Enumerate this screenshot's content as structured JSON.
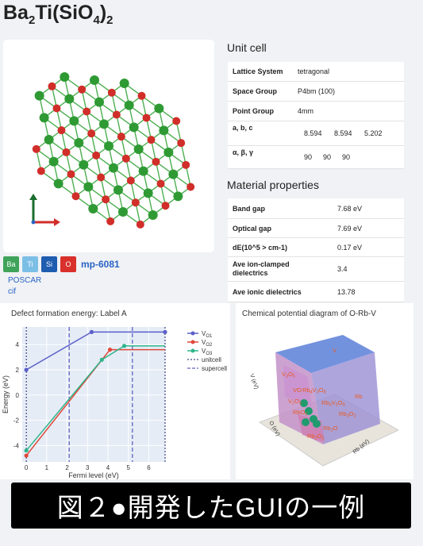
{
  "material": {
    "title_base": "Ba",
    "title_sub1": "2",
    "title_mid": "Ti(SiO",
    "title_sub2": "4",
    "title_end": ")",
    "title_sub3": "2",
    "mp_id": "mp-6081",
    "elements": [
      {
        "symbol": "Ba",
        "color": "#3fa35a"
      },
      {
        "symbol": "Ti",
        "color": "#7cbfe6"
      },
      {
        "symbol": "Si",
        "color": "#1f5db0"
      },
      {
        "symbol": "O",
        "color": "#d9302c"
      }
    ],
    "files": [
      "POSCAR",
      "cif"
    ]
  },
  "unit_cell": {
    "heading": "Unit cell",
    "rows": [
      {
        "key": "Lattice System",
        "values": [
          "tetragonal"
        ]
      },
      {
        "key": "Space Group",
        "values": [
          "P4bm (100)"
        ]
      },
      {
        "key": "Point Group",
        "values": [
          "4mm"
        ]
      },
      {
        "key": "a, b, c",
        "values": [
          "8.594",
          "8.594",
          "5.202"
        ]
      },
      {
        "key": "α, β, γ",
        "values": [
          "90",
          "90",
          "90"
        ]
      }
    ]
  },
  "material_properties": {
    "heading": "Material properties",
    "rows": [
      {
        "key": "Band gap",
        "value": "7.68 eV"
      },
      {
        "key": "Optical gap",
        "value": "7.69 eV"
      },
      {
        "key": "dE(10^5 > cm-1)",
        "value": "0.17 eV"
      },
      {
        "key": "Ave ion-clamped dielectrics",
        "value": "3.4"
      },
      {
        "key": "Ave ionic dielectrics",
        "value": "13.78"
      }
    ]
  },
  "defect_plot": {
    "title": "Defect formation energy: Label A",
    "legend": [
      "V_O1",
      "V_O2",
      "V_O3",
      "unitcell",
      "supercell"
    ]
  },
  "chart_data": [
    {
      "type": "line",
      "title": "Defect formation energy: Label A",
      "xlabel": "Fermi level (eV)",
      "ylabel": "Energy (eV)",
      "xlim": [
        -0.2,
        6.8
      ],
      "ylim": [
        -5.3,
        5.4
      ],
      "xticks": [
        "0",
        "1",
        "2",
        "3",
        "4",
        "5",
        "6"
      ],
      "yticks": [
        "-4",
        "-2",
        "0",
        "2",
        "4"
      ],
      "grid": true,
      "legend_position": "top-right",
      "series": [
        {
          "name": "V_O1",
          "color": "#5a5fc9",
          "x": [
            0,
            3.2,
            6.8
          ],
          "y": [
            2.0,
            5.0,
            5.0
          ],
          "markers_x": [
            0,
            3.2,
            6.8
          ]
        },
        {
          "name": "V_O2",
          "color": "#e0473a",
          "x": [
            0,
            4.1,
            6.8
          ],
          "y": [
            -4.8,
            3.6,
            3.6
          ],
          "markers_x": [
            0,
            4.1
          ]
        },
        {
          "name": "V_O3",
          "color": "#2fb58a",
          "x": [
            0,
            3.7,
            4.8,
            6.8
          ],
          "y": [
            -4.4,
            2.8,
            3.9,
            3.9
          ],
          "markers_x": [
            0,
            3.7,
            4.8
          ]
        }
      ],
      "vertical_lines": [
        {
          "name": "unitcell",
          "x": [
            0,
            6.8
          ],
          "color": "#1a1a66",
          "style": "dotted"
        },
        {
          "name": "supercell",
          "x": [
            2.1,
            5.2
          ],
          "color": "#3b3bb0",
          "style": "dashed"
        }
      ]
    }
  ],
  "chem_plot": {
    "title": "Chemical potential diagram of O-Rb-V",
    "regions": [
      {
        "label": "V",
        "color": "#5a7fd8"
      },
      {
        "label": "Rb",
        "color": "#9a8fd4"
      },
      {
        "label": "V3O5",
        "color": "#c990d0"
      },
      {
        "label": "VO",
        "color": "#b07ec8"
      },
      {
        "label": "Rb4V3O8",
        "color": "#d08cc4"
      },
      {
        "label": "Rb5V3O9",
        "color": "#c98bc0"
      },
      {
        "label": "Rb3O2",
        "color": "#d586b8"
      },
      {
        "label": "RbO2",
        "color": "#e06fa8"
      },
      {
        "label": "Rb2O",
        "color": "#d47fb0"
      },
      {
        "label": "Rb2O2",
        "color": "#cf7aae"
      },
      {
        "label": "V2O3",
        "color": "#b98acb"
      }
    ],
    "axis_labels": [
      "V (eV)",
      "O (eV)",
      "Rb (eV)"
    ]
  },
  "caption": "図２●開発したGUIの一例"
}
